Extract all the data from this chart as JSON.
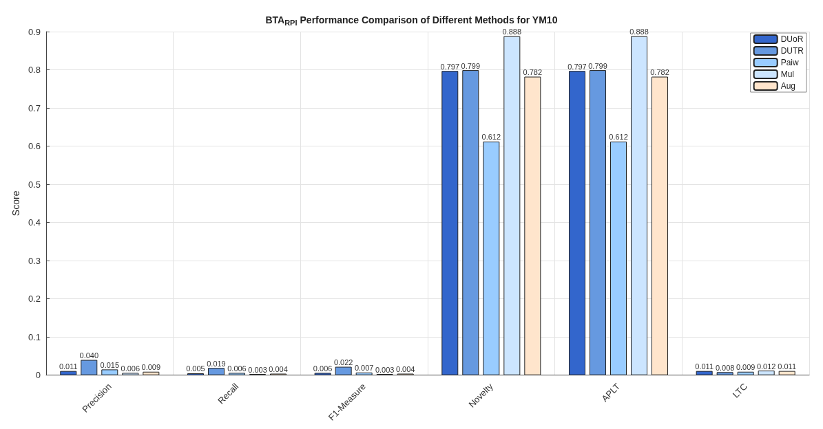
{
  "chart_data": {
    "type": "bar",
    "title": "BTA$_{RPI}$ Performance Comparison of Different Methods for YM10",
    "ylabel": "Score",
    "categories": [
      "Precision",
      "Recall",
      "F1-Measure",
      "Novelty",
      "APLT",
      "LTC"
    ],
    "series": [
      {
        "name": "DUoR",
        "color": "#3366cc",
        "values": [
          0.011,
          0.005,
          0.006,
          0.797,
          0.797,
          0.011
        ],
        "value_labels": [
          "0.011",
          "0.005",
          "0.006",
          "0.797",
          "0.797",
          "0.011"
        ]
      },
      {
        "name": "DUTR",
        "color": "#6699e0",
        "values": [
          0.04,
          0.019,
          0.022,
          0.799,
          0.799,
          0.008
        ],
        "value_labels": [
          "0.040",
          "0.019",
          "0.022",
          "0.799",
          "0.799",
          "0.008"
        ]
      },
      {
        "name": "Paiw",
        "color": "#99ccff",
        "values": [
          0.015,
          0.006,
          0.007,
          0.612,
          0.612,
          0.009
        ],
        "value_labels": [
          "0.015",
          "0.006",
          "0.007",
          "0.612",
          "0.612",
          "0.009"
        ]
      },
      {
        "name": "Mul",
        "color": "#cce5ff",
        "values": [
          0.006,
          0.003,
          0.003,
          0.888,
          0.888,
          0.012
        ],
        "value_labels": [
          "0.006",
          "0.003",
          "0.003",
          "0.888",
          "0.888",
          "0.012"
        ]
      },
      {
        "name": "Aug",
        "color": "#ffe5cc",
        "values": [
          0.009,
          0.004,
          0.004,
          0.782,
          0.782,
          0.011
        ],
        "value_labels": [
          "0.009",
          "0.004",
          "0.004",
          "0.782",
          "0.782",
          "0.011"
        ]
      }
    ],
    "ylim": [
      0,
      0.9
    ],
    "yticks": [
      0,
      0.1,
      0.2,
      0.3,
      0.4,
      0.5,
      0.6,
      0.7,
      0.8,
      0.9
    ],
    "grid": true,
    "legend": "top right"
  }
}
